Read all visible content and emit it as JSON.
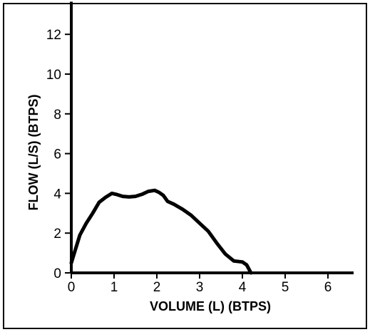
{
  "chart_data": {
    "type": "line",
    "title": "",
    "xlabel": "VOLUME (L) (BTPS)",
    "ylabel": "FLOW (L/S) (BTPS)",
    "xlim": [
      0,
      6.6
    ],
    "ylim": [
      0,
      13.5
    ],
    "x_ticks": [
      "0",
      "1",
      "2",
      "3",
      "4",
      "5",
      "6"
    ],
    "y_ticks": [
      "0",
      "2",
      "4",
      "6",
      "8",
      "10",
      "12"
    ],
    "grid": false,
    "legend": "none",
    "line_color": "#000000",
    "series": [
      {
        "x": [
          0.0,
          0.1,
          0.2,
          0.35,
          0.5,
          0.65,
          0.8,
          0.95,
          1.05,
          1.2,
          1.35,
          1.5,
          1.65,
          1.8,
          1.95,
          2.05,
          2.15,
          2.25,
          2.4,
          2.6,
          2.8,
          3.0,
          3.2,
          3.4,
          3.6,
          3.8,
          4.0,
          4.1,
          4.2
        ],
        "y": [
          0.5,
          1.2,
          1.9,
          2.5,
          3.0,
          3.55,
          3.8,
          4.0,
          3.95,
          3.85,
          3.82,
          3.85,
          3.95,
          4.1,
          4.15,
          4.05,
          3.9,
          3.6,
          3.45,
          3.2,
          2.9,
          2.5,
          2.1,
          1.5,
          0.95,
          0.6,
          0.55,
          0.4,
          0.0
        ]
      }
    ]
  }
}
